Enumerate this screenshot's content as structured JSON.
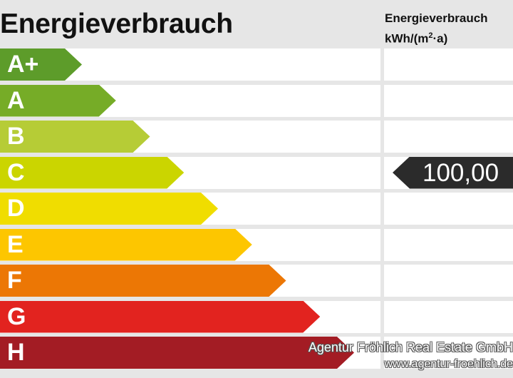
{
  "title": "Energieverbrauch",
  "column_header": {
    "line1": "Energieverbrauch",
    "unit_prefix": "kWh/(m",
    "unit_exponent": "2",
    "unit_suffix": "·a)"
  },
  "classes": [
    {
      "label": "A+",
      "color": "#5d9c2a"
    },
    {
      "label": "A",
      "color": "#76ac27"
    },
    {
      "label": "B",
      "color": "#b6cc36"
    },
    {
      "label": "C",
      "color": "#cbd500"
    },
    {
      "label": "D",
      "color": "#f0dd00"
    },
    {
      "label": "E",
      "color": "#fdc600"
    },
    {
      "label": "F",
      "color": "#ec7705"
    },
    {
      "label": "G",
      "color": "#e2231f"
    },
    {
      "label": "H",
      "color": "#a31c24"
    }
  ],
  "marker": {
    "value": "100,00",
    "class": "C",
    "color": "#2b2b2b"
  },
  "watermark": {
    "company": "Agentur Fröhlich Real Estate GmbH",
    "url": "www.agentur-froehlich.de"
  }
}
